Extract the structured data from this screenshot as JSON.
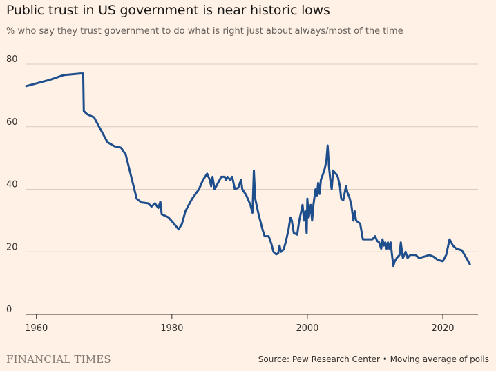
{
  "header": {
    "title": "Public trust in US government is near historic lows",
    "subtitle": "% who say they trust government to do what is right just about always/most of the time"
  },
  "footer": {
    "logo": "FINANCIAL TIMES",
    "source": "Source: Pew Research Center • Moving average of polls"
  },
  "colors": {
    "background": "#FFF1E5",
    "line": "#1F4E8C",
    "grid": "#D9CCC1",
    "axis": "#33302E"
  },
  "chart_data": {
    "type": "line",
    "title": "Public trust in US government is near historic lows",
    "subtitle": "% who say they trust government to do what is right just about always/most of the time",
    "xlabel": "",
    "ylabel": "",
    "xlim": [
      1958.5,
      2025.2
    ],
    "ylim": [
      0,
      80
    ],
    "x_ticks": [
      1960,
      1980,
      2000,
      2020
    ],
    "y_ticks": [
      0,
      20,
      40,
      60,
      80
    ],
    "grid": "horizontal",
    "series": [
      {
        "values": [
          [
            1958.5,
            73
          ],
          [
            1962,
            75
          ],
          [
            1964,
            76.5
          ],
          [
            1966.5,
            77
          ],
          [
            1966.9,
            77
          ],
          [
            1967.0,
            65
          ],
          [
            1967.5,
            64
          ],
          [
            1968.5,
            63
          ],
          [
            1969.5,
            59
          ],
          [
            1970.5,
            55
          ],
          [
            1971.5,
            53.8
          ],
          [
            1972.5,
            53.3
          ],
          [
            1973.2,
            51
          ],
          [
            1974.0,
            44
          ],
          [
            1974.8,
            37
          ],
          [
            1975.5,
            35.8
          ],
          [
            1976.5,
            35.5
          ],
          [
            1977.0,
            34.5
          ],
          [
            1977.5,
            35.5
          ],
          [
            1978.0,
            34
          ],
          [
            1978.3,
            36
          ],
          [
            1978.5,
            32
          ],
          [
            1979.5,
            31
          ],
          [
            1980.3,
            29
          ],
          [
            1981.0,
            27.2
          ],
          [
            1981.5,
            29
          ],
          [
            1982.0,
            33
          ],
          [
            1983.0,
            37
          ],
          [
            1984.0,
            40
          ],
          [
            1984.6,
            43
          ],
          [
            1985.2,
            45
          ],
          [
            1985.6,
            43
          ],
          [
            1985.8,
            41
          ],
          [
            1986.0,
            44
          ],
          [
            1986.3,
            40
          ],
          [
            1986.8,
            42
          ],
          [
            1987.3,
            44
          ],
          [
            1987.8,
            44
          ],
          [
            1988.0,
            43
          ],
          [
            1988.2,
            44
          ],
          [
            1988.6,
            43
          ],
          [
            1988.9,
            44
          ],
          [
            1989.3,
            40
          ],
          [
            1989.8,
            40.5
          ],
          [
            1990.2,
            43
          ],
          [
            1990.4,
            40
          ],
          [
            1991.0,
            38
          ],
          [
            1991.6,
            35
          ],
          [
            1991.9,
            32.5
          ],
          [
            1992.1,
            46
          ],
          [
            1992.3,
            37
          ],
          [
            1992.8,
            32
          ],
          [
            1993.4,
            27
          ],
          [
            1993.7,
            25
          ],
          [
            1994.3,
            25
          ],
          [
            1994.7,
            22.5
          ],
          [
            1995.0,
            20
          ],
          [
            1995.4,
            19.2
          ],
          [
            1995.7,
            19.5
          ],
          [
            1995.9,
            22
          ],
          [
            1996.1,
            20
          ],
          [
            1996.5,
            20.8
          ],
          [
            1996.8,
            23
          ],
          [
            1997.2,
            27
          ],
          [
            1997.5,
            31
          ],
          [
            1997.7,
            30
          ],
          [
            1998.0,
            26
          ],
          [
            1998.5,
            25.5
          ],
          [
            1998.8,
            30
          ],
          [
            1999.0,
            32
          ],
          [
            1999.3,
            35
          ],
          [
            1999.5,
            30
          ],
          [
            1999.7,
            33
          ],
          [
            1999.9,
            26
          ],
          [
            2000.0,
            37
          ],
          [
            2000.2,
            31
          ],
          [
            2000.5,
            35
          ],
          [
            2000.7,
            30
          ],
          [
            2000.9,
            35
          ],
          [
            2001.2,
            40
          ],
          [
            2001.4,
            38
          ],
          [
            2001.6,
            42
          ],
          [
            2001.8,
            38.5
          ],
          [
            2002.0,
            43
          ],
          [
            2002.5,
            46
          ],
          [
            2002.8,
            49
          ],
          [
            2003.0,
            54
          ],
          [
            2003.2,
            47
          ],
          [
            2003.4,
            43
          ],
          [
            2003.6,
            40
          ],
          [
            2003.8,
            46
          ],
          [
            2004.2,
            45
          ],
          [
            2004.5,
            44
          ],
          [
            2004.8,
            41
          ],
          [
            2005.0,
            37
          ],
          [
            2005.3,
            36.5
          ],
          [
            2005.7,
            41
          ],
          [
            2005.9,
            39
          ],
          [
            2006.2,
            37.5
          ],
          [
            2006.5,
            35
          ],
          [
            2006.8,
            30
          ],
          [
            2007.0,
            33
          ],
          [
            2007.2,
            30
          ],
          [
            2007.8,
            29
          ],
          [
            2008.2,
            24
          ],
          [
            2009.0,
            24
          ],
          [
            2009.6,
            24
          ],
          [
            2010.0,
            25
          ],
          [
            2010.3,
            23.5
          ],
          [
            2010.6,
            23
          ],
          [
            2010.9,
            21
          ],
          [
            2011.1,
            24
          ],
          [
            2011.3,
            22
          ],
          [
            2011.5,
            23
          ],
          [
            2011.7,
            21
          ],
          [
            2011.9,
            23
          ],
          [
            2012.1,
            21
          ],
          [
            2012.3,
            23
          ],
          [
            2012.5,
            19
          ],
          [
            2012.7,
            15.5
          ],
          [
            2012.9,
            17
          ],
          [
            2013.2,
            18
          ],
          [
            2013.6,
            19
          ],
          [
            2013.8,
            23
          ],
          [
            2014.1,
            18
          ],
          [
            2014.5,
            20
          ],
          [
            2014.8,
            18
          ],
          [
            2015.2,
            19
          ],
          [
            2016.0,
            19
          ],
          [
            2016.5,
            18
          ],
          [
            2017.3,
            18.5
          ],
          [
            2018.0,
            19
          ],
          [
            2018.6,
            18.5
          ],
          [
            2019.2,
            17.5
          ],
          [
            2020.0,
            17
          ],
          [
            2020.5,
            19
          ],
          [
            2021.0,
            24
          ],
          [
            2021.5,
            22
          ],
          [
            2022.0,
            21
          ],
          [
            2022.8,
            20.5
          ],
          [
            2023.5,
            18
          ],
          [
            2024.0,
            16
          ]
        ]
      }
    ]
  }
}
